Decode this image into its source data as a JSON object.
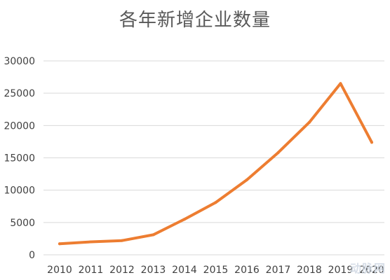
{
  "chart_data": {
    "type": "line",
    "title": "各年新增企业数量",
    "xlabel": "",
    "ylabel": "",
    "categories": [
      "2010",
      "2011",
      "2012",
      "2013",
      "2014",
      "2015",
      "2016",
      "2017",
      "2018",
      "2019",
      "2020"
    ],
    "series": [
      {
        "values": [
          1700,
          2000,
          2200,
          3100,
          5500,
          8100,
          11600,
          15800,
          20500,
          26500,
          17400
        ],
        "color": "#ed7d31"
      }
    ],
    "ylim": [
      0,
      30000
    ],
    "yticks": [
      "0",
      "5000",
      "10000",
      "15000",
      "20000",
      "25000",
      "30000"
    ],
    "grid": true,
    "legend": "none"
  },
  "watermark": {
    "text": "动脉网"
  }
}
